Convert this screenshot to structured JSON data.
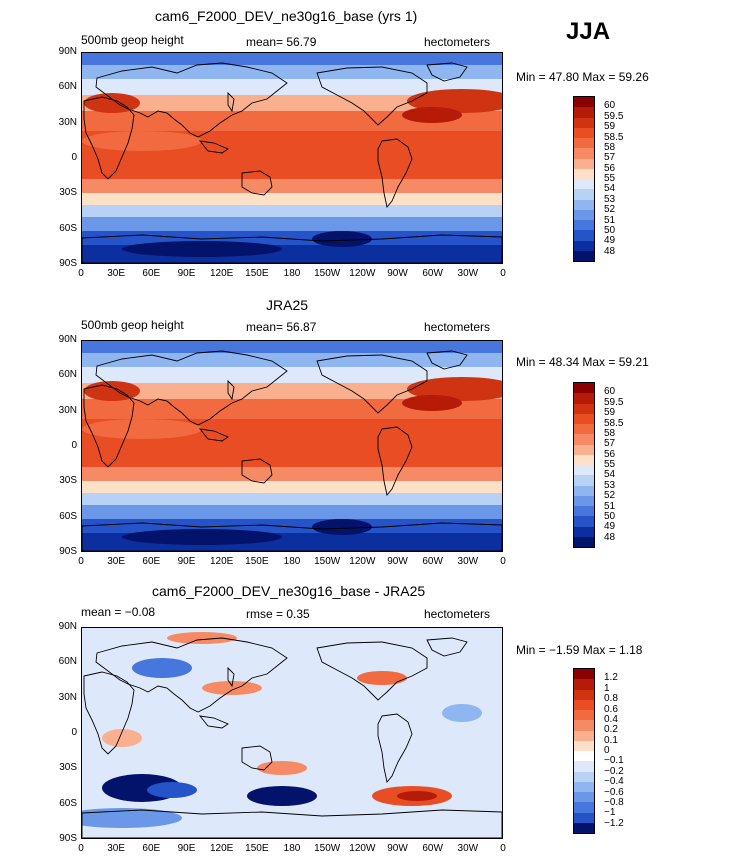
{
  "season": "JJA",
  "panels": [
    {
      "title": "cam6_F2000_DEV_ne30g16_base (yrs 1)",
      "left": "500mb geop height",
      "stat1": "mean=   56.79",
      "stat2": "",
      "units": "hectometers",
      "minmax": "Min =  47.80  Max =  59.26",
      "levels": [
        "60",
        "59.5",
        "59",
        "58.5",
        "58",
        "57",
        "56",
        "55",
        "54",
        "53",
        "52",
        "51",
        "50",
        "49",
        "48"
      ],
      "colors": [
        "#8b0000",
        "#b51b06",
        "#cf3311",
        "#e84d24",
        "#f26a3f",
        "#f68a64",
        "#fab08f",
        "#fde0c8",
        "#dde9fa",
        "#b8d2f6",
        "#8fb6f0",
        "#6a97e8",
        "#4776dd",
        "#2553c8",
        "#0b2f9e",
        "#03136b"
      ]
    },
    {
      "title": "JRA25",
      "left": "500mb geop height",
      "stat1": "mean=   56.87",
      "stat2": "",
      "units": "hectometers",
      "minmax": "Min =  48.34  Max =  59.21",
      "levels": [
        "60",
        "59.5",
        "59",
        "58.5",
        "58",
        "57",
        "56",
        "55",
        "54",
        "53",
        "52",
        "51",
        "50",
        "49",
        "48"
      ],
      "colors": [
        "#8b0000",
        "#b51b06",
        "#cf3311",
        "#e84d24",
        "#f26a3f",
        "#f68a64",
        "#fab08f",
        "#fde0c8",
        "#dde9fa",
        "#b8d2f6",
        "#8fb6f0",
        "#6a97e8",
        "#4776dd",
        "#2553c8",
        "#0b2f9e",
        "#03136b"
      ]
    },
    {
      "title": "cam6_F2000_DEV_ne30g16_base - JRA25",
      "left": "mean =  −0.08",
      "stat1": "rmse =     0.35",
      "stat2": "",
      "units": "hectometers",
      "minmax": "Min =  −1.59  Max =    1.18",
      "levels": [
        "1.2",
        "1",
        "0.8",
        "0.6",
        "0.4",
        "0.2",
        "0.1",
        "0",
        "−0.1",
        "−0.2",
        "−0.4",
        "−0.6",
        "−0.8",
        "−1",
        "−1.2"
      ],
      "colors": [
        "#8b0000",
        "#b51b06",
        "#cf3311",
        "#e84d24",
        "#f26a3f",
        "#f68a64",
        "#fab08f",
        "#fde0c8",
        "#ffffff",
        "#dde9fa",
        "#b8d2f6",
        "#8fb6f0",
        "#6a97e8",
        "#4776dd",
        "#2553c8",
        "#03136b"
      ]
    }
  ],
  "lat_ticks": [
    "90N",
    "60N",
    "30N",
    "0",
    "30S",
    "60S",
    "90S"
  ],
  "lon_ticks": [
    "0",
    "30E",
    "60E",
    "90E",
    "120E",
    "150E",
    "180",
    "150W",
    "120W",
    "90W",
    "60W",
    "30W",
    "0"
  ]
}
